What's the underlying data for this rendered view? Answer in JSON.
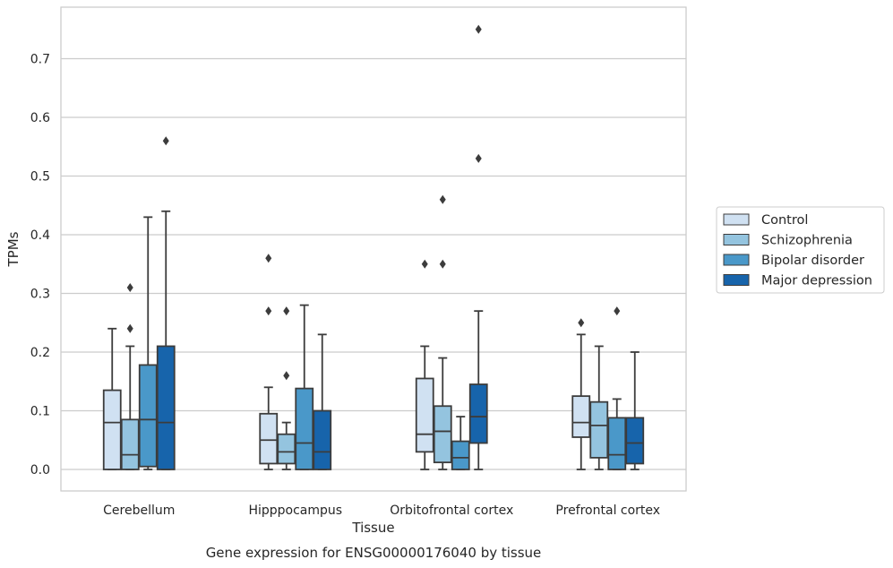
{
  "caption": "Gene expression for ENSG00000176040 by tissue",
  "chart_data": {
    "type": "box",
    "xlabel": "Tissue",
    "ylabel": "TPMs",
    "ylim": [
      -0.037,
      0.79
    ],
    "yticks": [
      0.0,
      0.1,
      0.2,
      0.3,
      0.4,
      0.5,
      0.6,
      0.7
    ],
    "ytick_labels": [
      "0.0",
      "0.1",
      "0.2",
      "0.3",
      "0.4",
      "0.5",
      "0.6",
      "0.7"
    ],
    "grid": "horizontal",
    "legend_position": "outside-right",
    "categories": [
      "Cerebellum",
      "Hipppocampus",
      "Orbitofrontal cortex",
      "Prefrontal cortex"
    ],
    "series": [
      {
        "name": "Control",
        "color": "#d0e1f2",
        "boxes": [
          {
            "whislo": 0.0,
            "q1": 0.0,
            "med": 0.08,
            "q3": 0.135,
            "whishi": 0.24,
            "fliers": []
          },
          {
            "whislo": 0.0,
            "q1": 0.01,
            "med": 0.05,
            "q3": 0.095,
            "whishi": 0.14,
            "fliers": [
              0.27,
              0.36
            ]
          },
          {
            "whislo": 0.0,
            "q1": 0.03,
            "med": 0.06,
            "q3": 0.155,
            "whishi": 0.21,
            "fliers": [
              0.35
            ]
          },
          {
            "whislo": 0.0,
            "q1": 0.055,
            "med": 0.08,
            "q3": 0.125,
            "whishi": 0.23,
            "fliers": [
              0.25
            ]
          }
        ]
      },
      {
        "name": "Schizophrenia",
        "color": "#94c4df",
        "boxes": [
          {
            "whislo": 0.0,
            "q1": 0.0,
            "med": 0.025,
            "q3": 0.085,
            "whishi": 0.21,
            "fliers": [
              0.24,
              0.31
            ]
          },
          {
            "whislo": 0.0,
            "q1": 0.01,
            "med": 0.03,
            "q3": 0.06,
            "whishi": 0.08,
            "fliers": [
              0.16,
              0.27
            ]
          },
          {
            "whislo": 0.0,
            "q1": 0.012,
            "med": 0.065,
            "q3": 0.108,
            "whishi": 0.19,
            "fliers": [
              0.35,
              0.46
            ]
          },
          {
            "whislo": 0.0,
            "q1": 0.02,
            "med": 0.075,
            "q3": 0.115,
            "whishi": 0.21,
            "fliers": []
          }
        ]
      },
      {
        "name": "Bipolar disorder",
        "color": "#4a98c9",
        "boxes": [
          {
            "whislo": 0.0,
            "q1": 0.005,
            "med": 0.085,
            "q3": 0.178,
            "whishi": 0.43,
            "fliers": []
          },
          {
            "whislo": 0.0,
            "q1": 0.0,
            "med": 0.045,
            "q3": 0.138,
            "whishi": 0.28,
            "fliers": []
          },
          {
            "whislo": 0.0,
            "q1": 0.0,
            "med": 0.02,
            "q3": 0.048,
            "whishi": 0.09,
            "fliers": []
          },
          {
            "whislo": 0.0,
            "q1": 0.0,
            "med": 0.025,
            "q3": 0.088,
            "whishi": 0.12,
            "fliers": [
              0.27
            ]
          }
        ]
      },
      {
        "name": "Major depression",
        "color": "#1764ab",
        "boxes": [
          {
            "whislo": 0.0,
            "q1": 0.0,
            "med": 0.08,
            "q3": 0.21,
            "whishi": 0.44,
            "fliers": [
              0.56
            ]
          },
          {
            "whislo": 0.0,
            "q1": 0.0,
            "med": 0.03,
            "q3": 0.1,
            "whishi": 0.23,
            "fliers": []
          },
          {
            "whislo": 0.0,
            "q1": 0.045,
            "med": 0.09,
            "q3": 0.145,
            "whishi": 0.27,
            "fliers": [
              0.53,
              0.75
            ]
          },
          {
            "whislo": 0.0,
            "q1": 0.01,
            "med": 0.045,
            "q3": 0.088,
            "whishi": 0.2,
            "fliers": []
          }
        ]
      }
    ]
  }
}
